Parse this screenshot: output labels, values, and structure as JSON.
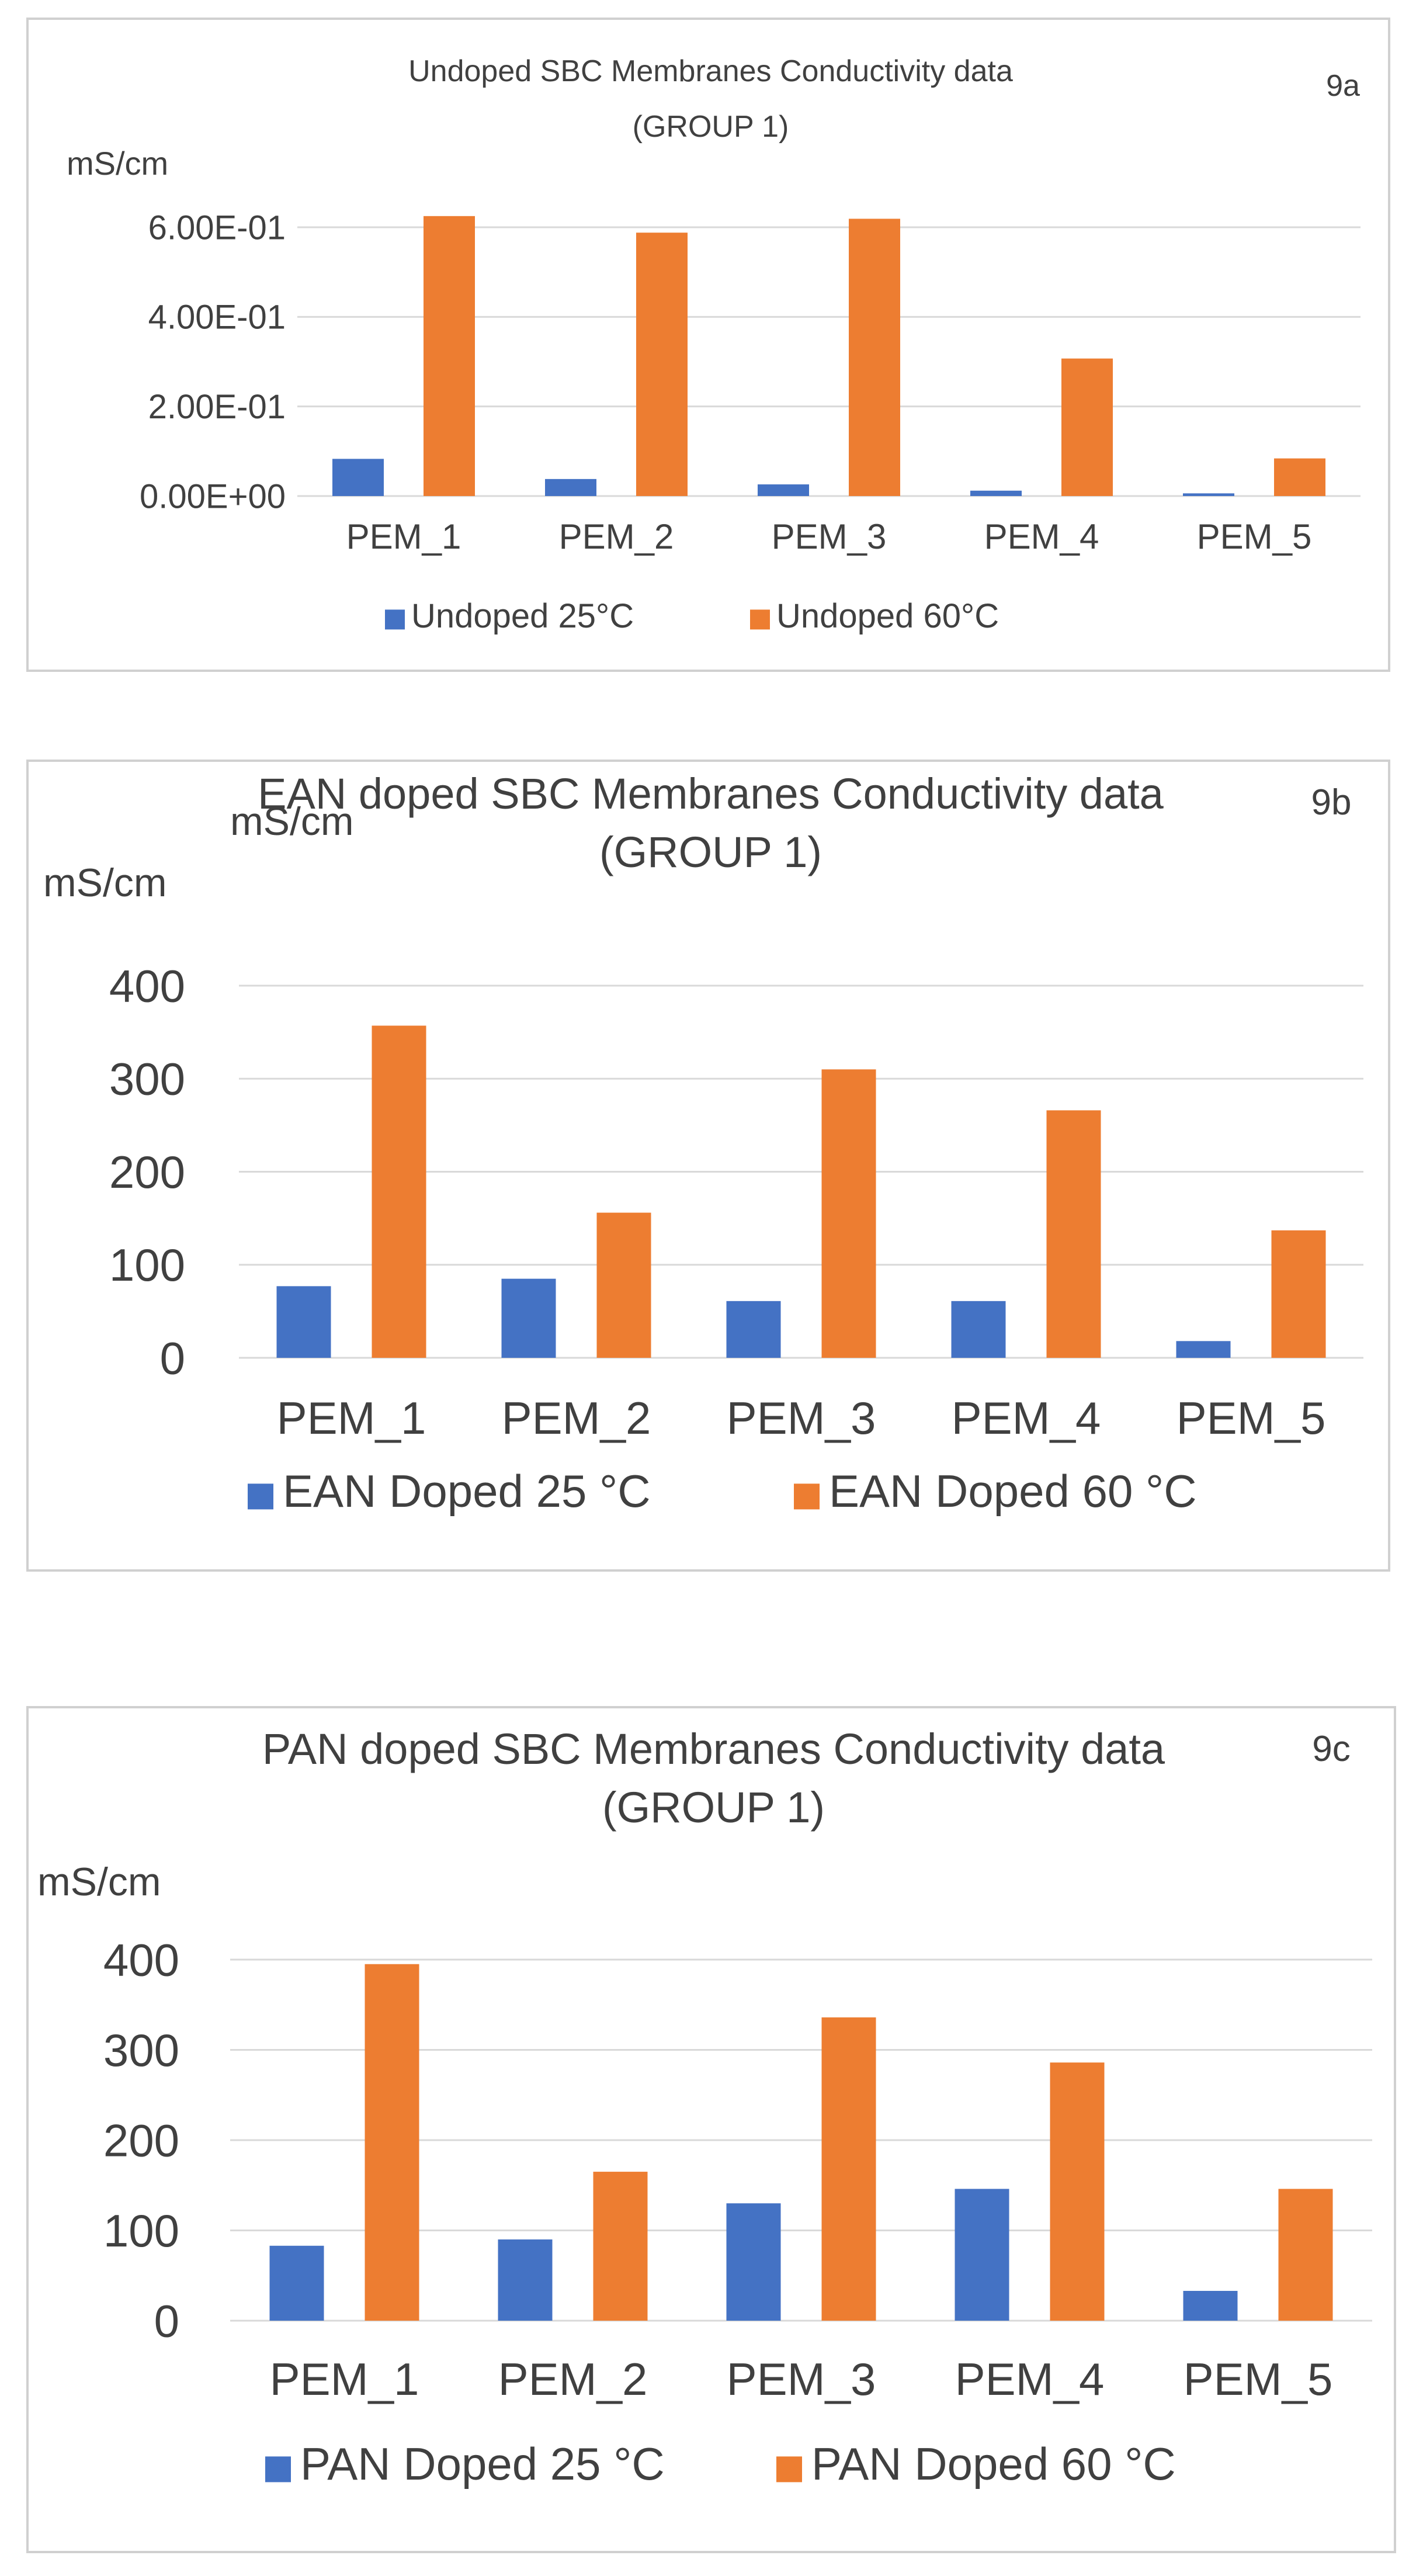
{
  "chart_data": [
    {
      "type": "bar",
      "panel_label": "9a",
      "title": [
        "Undoped SBC Membranes Conductivity data",
        "(GROUP 1)"
      ],
      "ylabel": "mS/cm",
      "categories": [
        "PEM_1",
        "PEM_2",
        "PEM_3",
        "PEM_4",
        "PEM_5"
      ],
      "yticks": [
        0,
        0.2,
        0.4,
        0.6
      ],
      "ytick_labels": [
        "0.00E+00",
        "2.00E-01",
        "4.00E-01",
        "6.00E-01"
      ],
      "ylim": [
        0,
        0.6
      ],
      "grid": true,
      "legend_position": "bottom",
      "series": [
        {
          "name": "Undoped 25°C",
          "color": "#4472c4",
          "values": [
            0.083,
            0.038,
            0.026,
            0.012,
            0.006
          ]
        },
        {
          "name": "Undoped 60°C",
          "color": "#ed7d31",
          "values": [
            0.625,
            0.588,
            0.619,
            0.307,
            0.084
          ]
        }
      ]
    },
    {
      "type": "bar",
      "panel_label": "9b",
      "title": [
        "EAN doped SBC Membranes Conductivity data",
        "(GROUP 1)"
      ],
      "extra_text": "mS/cm",
      "ylabel": "mS/cm",
      "categories": [
        "PEM_1",
        "PEM_2",
        "PEM_3",
        "PEM_4",
        "PEM_5"
      ],
      "yticks": [
        0,
        100,
        200,
        300,
        400
      ],
      "ytick_labels": [
        "0",
        "100",
        "200",
        "300",
        "400"
      ],
      "ylim": [
        0,
        400
      ],
      "grid": true,
      "legend_position": "bottom",
      "series": [
        {
          "name": "EAN Doped 25 °C",
          "color": "#4472c4",
          "values": [
            77,
            85,
            61,
            61,
            18
          ]
        },
        {
          "name": "EAN Doped 60 °C",
          "color": "#ed7d31",
          "values": [
            357,
            156,
            310,
            266,
            137
          ]
        }
      ]
    },
    {
      "type": "bar",
      "panel_label": "9c",
      "title": [
        "PAN doped SBC Membranes Conductivity data",
        "(GROUP 1)"
      ],
      "ylabel": "mS/cm",
      "categories": [
        "PEM_1",
        "PEM_2",
        "PEM_3",
        "PEM_4",
        "PEM_5"
      ],
      "yticks": [
        0,
        100,
        200,
        300,
        400
      ],
      "ytick_labels": [
        "0",
        "100",
        "200",
        "300",
        "400"
      ],
      "ylim": [
        0,
        400
      ],
      "grid": true,
      "legend_position": "bottom",
      "series": [
        {
          "name": "PAN Doped 25 °C",
          "color": "#4472c4",
          "values": [
            83,
            90,
            130,
            146,
            33
          ]
        },
        {
          "name": "PAN Doped 60 °C",
          "color": "#ed7d31",
          "values": [
            395,
            165,
            336,
            286,
            146
          ]
        }
      ]
    }
  ]
}
